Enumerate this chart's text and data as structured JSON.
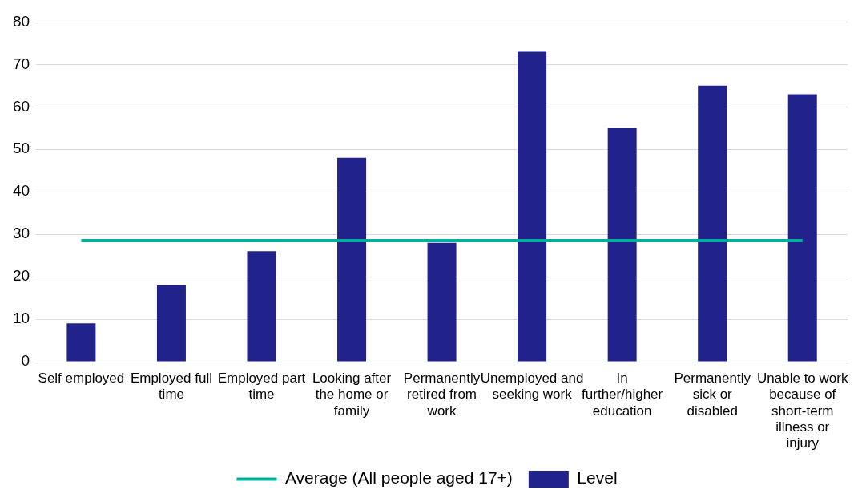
{
  "chart_data": {
    "type": "bar",
    "categories": [
      "Self employed",
      "Employed full time",
      "Employed part time",
      "Looking after the home or family",
      "Permanently retired from work",
      "Unemployed and seeking work",
      "In further/higher education",
      "Permanently sick or disabled",
      "Unable to work because of short-term illness or injury"
    ],
    "series": [
      {
        "name": "Level",
        "color": "#22228c",
        "values": [
          9,
          18,
          26,
          48,
          28,
          73,
          55,
          65,
          63
        ]
      },
      {
        "name": "Average (All people aged 17+)",
        "type": "line",
        "color": "#00b09b",
        "values": [
          28.5,
          28.5,
          28.5,
          28.5,
          28.5,
          28.5,
          28.5,
          28.5,
          28.5
        ]
      }
    ],
    "ylim": [
      0,
      80
    ],
    "yticks": [
      0,
      10,
      20,
      30,
      40,
      50,
      60,
      70,
      80
    ],
    "grid": "y",
    "legend": "bottom",
    "marker": "none"
  }
}
